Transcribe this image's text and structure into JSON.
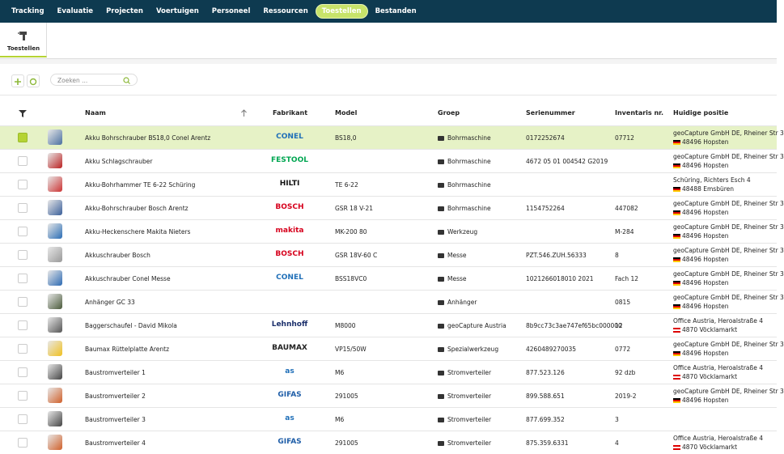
{
  "nav": {
    "items": [
      "Tracking",
      "Evaluatie",
      "Projecten",
      "Voertuigen",
      "Personeel",
      "Ressourcen",
      "Toestellen",
      "Bestanden"
    ],
    "active": 6
  },
  "tab": {
    "label": "Toestellen"
  },
  "toolbar": {
    "search_placeholder": "Zoeken ..."
  },
  "table": {
    "headers": [
      "Naam",
      "Fabrikant",
      "Model",
      "Groep",
      "Serienummer",
      "Inventaris nr.",
      "Huidige positie"
    ],
    "rows": [
      {
        "name": "Akku Bohrschrauber BS18,0 Conel Arentz",
        "fabrikant": "CONEL",
        "fabrikant_color": "#1f6fb8",
        "model": "BS18,0",
        "groep": "Bohrmaschine",
        "serienummer": "0172252674",
        "inventaris": "07712",
        "positie": [
          "geoCapture GmbH DE, Rheiner Str 3",
          "48496 Hopsten"
        ],
        "flag": "de",
        "selected": true
      },
      {
        "name": "Akku Schlagschrauber",
        "fabrikant": "FESTOOL",
        "fabrikant_color": "#00a651",
        "model": null,
        "groep": "Bohrmaschine",
        "serienummer": "4672 05 01 004542 G2019",
        "inventaris": null,
        "positie": [
          "geoCapture GmbH DE, Rheiner Str 3",
          "48496 Hopsten"
        ],
        "flag": "de",
        "selected": false
      },
      {
        "name": "Akku-Bohrhammer TE 6-22 Schüring",
        "fabrikant": "HILTI",
        "fabrikant_color": "#111111",
        "model": "TE 6-22",
        "groep": "Bohrmaschine",
        "serienummer": null,
        "inventaris": null,
        "positie": [
          "Schüring, Richters Esch 4",
          "48488 Emsbüren"
        ],
        "flag": "de",
        "selected": false
      },
      {
        "name": "Akku-Bohrschrauber Bosch Arentz",
        "fabrikant": "BOSCH",
        "fabrikant_color": "#d6001c",
        "model": "GSR 18 V-21",
        "groep": "Bohrmaschine",
        "serienummer": "1154752264",
        "inventaris": "447082",
        "positie": [
          "geoCapture GmbH DE, Rheiner Str 3",
          "48496 Hopsten"
        ],
        "flag": "de",
        "selected": false
      },
      {
        "name": "Akku-Heckenschere Makita Nieters",
        "fabrikant": "makita",
        "fabrikant_color": "#d6001c",
        "model": "MK-200 80",
        "groep": "Werkzeug",
        "serienummer": null,
        "inventaris": "M-284",
        "positie": [
          "geoCapture GmbH DE, Rheiner Str 3",
          "48496 Hopsten"
        ],
        "flag": "de",
        "selected": false
      },
      {
        "name": "Akkuschrauber Bosch",
        "fabrikant": "BOSCH",
        "fabrikant_color": "#d6001c",
        "model": "GSR 18V-60 C",
        "groep": "Messe",
        "serienummer": "PZT.546.ZUH.56333",
        "inventaris": "8",
        "positie": [
          "geoCapture GmbH DE, Rheiner Str 3",
          "48496 Hopsten"
        ],
        "flag": "de",
        "selected": false
      },
      {
        "name": "Akkuschrauber Conel Messe",
        "fabrikant": "CONEL",
        "fabrikant_color": "#1f6fb8",
        "model": "BSS18VC0",
        "groep": "Messe",
        "serienummer": "1021266018010 2021",
        "inventaris": "Fach 12",
        "positie": [
          "geoCapture GmbH DE, Rheiner Str 3",
          "48496 Hopsten"
        ],
        "flag": "de",
        "selected": false
      },
      {
        "name": "Anhänger GC 33",
        "fabrikant": null,
        "fabrikant_color": null,
        "model": null,
        "groep": "Anhänger",
        "serienummer": null,
        "inventaris": "0815",
        "positie": [
          "geoCapture GmbH DE, Rheiner Str 3",
          "48496 Hopsten"
        ],
        "flag": "de",
        "selected": false
      },
      {
        "name": "Baggerschaufel - David Mikola",
        "fabrikant": "Lehnhoff",
        "fabrikant_color": "#1b2f6b",
        "model": "M8000",
        "groep": "geoCapture Austria",
        "serienummer": "8b9cc73c3ae747ef65bc000000",
        "inventaris": "12",
        "positie": [
          "Office Austria, Heroalstraße 4",
          "4870 Vöcklamarkt"
        ],
        "flag": "at",
        "selected": false
      },
      {
        "name": "Baumax Rüttelplatte Arentz",
        "fabrikant": "BAUMAX",
        "fabrikant_color": "#222222",
        "model": "VP15/50W",
        "groep": "Spezialwerkzeug",
        "serienummer": "4260489270035",
        "inventaris": "0772",
        "positie": [
          "geoCapture GmbH DE, Rheiner Str 3",
          "48496 Hopsten"
        ],
        "flag": "de",
        "selected": false
      },
      {
        "name": "Baustromverteiler 1",
        "fabrikant": "as",
        "fabrikant_color": "#1f6fb8",
        "model": "M6",
        "groep": "Stromverteiler",
        "serienummer": "877.523.126",
        "inventaris": "92 dzb",
        "positie": [
          "Office Austria, Heroalstraße 4",
          "4870 Vöcklamarkt"
        ],
        "flag": "at",
        "selected": false
      },
      {
        "name": "Baustromverteiler 2",
        "fabrikant": "GIFAS",
        "fabrikant_color": "#1f5ea8",
        "model": "291005",
        "groep": "Stromverteiler",
        "serienummer": "899.588.651",
        "inventaris": "2019-2",
        "positie": [
          "geoCapture GmbH DE, Rheiner Str 3",
          "48496 Hopsten"
        ],
        "flag": "de",
        "selected": false
      },
      {
        "name": "Baustromverteiler 3",
        "fabrikant": "as",
        "fabrikant_color": "#1f6fb8",
        "model": "M6",
        "groep": "Stromverteiler",
        "serienummer": "877.699.352",
        "inventaris": "3",
        "positie": null,
        "flag": null,
        "selected": false
      },
      {
        "name": "Baustromverteiler 4",
        "fabrikant": "GIFAS",
        "fabrikant_color": "#1f5ea8",
        "model": "291005",
        "groep": "Stromverteiler",
        "serienummer": "875.359.6331",
        "inventaris": "4",
        "positie": [
          "Office Austria, Heroalstraße 4",
          "4870 Vöcklamarkt"
        ],
        "flag": "at",
        "selected": false
      }
    ]
  }
}
